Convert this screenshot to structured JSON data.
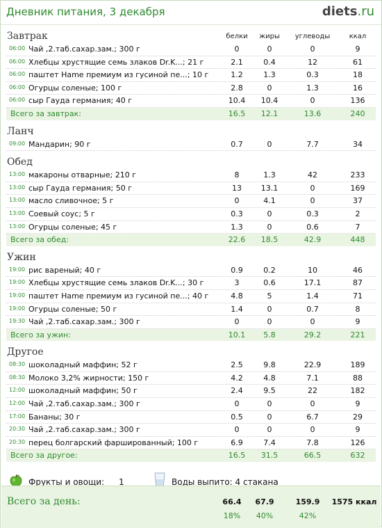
{
  "header": {
    "title": "Дневник питания, 3 декабря",
    "logo_main": "diets",
    "logo_tld": ".ru"
  },
  "columns": {
    "protein": "белки",
    "fat": "жиры",
    "carbs": "углеводы",
    "kcal": "ккал"
  },
  "meals": [
    {
      "name": "Завтрак",
      "items": [
        {
          "time": "06:00",
          "food": "Чай ,2.таб.сахар.зам.; 300 г",
          "p": "0",
          "f": "0",
          "c": "0",
          "k": "9"
        },
        {
          "time": "06:00",
          "food": "Хлебцы хрустящие семь злаков Dr.K...; 21 г",
          "p": "2.1",
          "f": "0.4",
          "c": "12",
          "k": "61"
        },
        {
          "time": "06:00",
          "food": "паштет Hame премиум из гусиной пе...; 10 г",
          "p": "1.2",
          "f": "1.3",
          "c": "0.3",
          "k": "18"
        },
        {
          "time": "06:00",
          "food": "Огурцы соленые; 100 г",
          "p": "2.8",
          "f": "0",
          "c": "1.3",
          "k": "16"
        },
        {
          "time": "06:00",
          "food": "сыр Гауда германия; 40 г",
          "p": "10.4",
          "f": "10.4",
          "c": "0",
          "k": "136"
        }
      ],
      "total": {
        "label": "Всего за завтрак:",
        "p": "16.5",
        "f": "12.1",
        "c": "13.6",
        "k": "240"
      }
    },
    {
      "name": "Ланч",
      "items": [
        {
          "time": "09:00",
          "food": "Мандарин; 90 г",
          "p": "0.7",
          "f": "0",
          "c": "7.7",
          "k": "34"
        }
      ],
      "total": null
    },
    {
      "name": "Обед",
      "items": [
        {
          "time": "13:00",
          "food": "макароны отварные; 210 г",
          "p": "8",
          "f": "1.3",
          "c": "42",
          "k": "233"
        },
        {
          "time": "13:00",
          "food": "сыр Гауда германия; 50 г",
          "p": "13",
          "f": "13.1",
          "c": "0",
          "k": "169"
        },
        {
          "time": "13:00",
          "food": "масло  сливочное; 5 г",
          "p": "0",
          "f": "4.1",
          "c": "0",
          "k": "37"
        },
        {
          "time": "13:00",
          "food": "Соевый соус; 5 г",
          "p": "0.3",
          "f": "0",
          "c": "0.3",
          "k": "2"
        },
        {
          "time": "13:00",
          "food": "Огурцы соленые; 45 г",
          "p": "1.3",
          "f": "0",
          "c": "0.6",
          "k": "7"
        }
      ],
      "total": {
        "label": "Всего за обед:",
        "p": "22.6",
        "f": "18.5",
        "c": "42.9",
        "k": "448"
      }
    },
    {
      "name": "Ужин",
      "items": [
        {
          "time": "19:00",
          "food": "рис вареный; 40 г",
          "p": "0.9",
          "f": "0.2",
          "c": "10",
          "k": "46"
        },
        {
          "time": "19:00",
          "food": "Хлебцы хрустящие семь злаков Dr.K...; 30 г",
          "p": "3",
          "f": "0.6",
          "c": "17.1",
          "k": "87"
        },
        {
          "time": "19:00",
          "food": "паштет Hame премиум из гусиной пе...; 40 г",
          "p": "4.8",
          "f": "5",
          "c": "1.4",
          "k": "71"
        },
        {
          "time": "19:00",
          "food": "Огурцы соленые; 50 г",
          "p": "1.4",
          "f": "0",
          "c": "0.7",
          "k": "8"
        },
        {
          "time": "19:30",
          "food": "Чай ,2.таб.сахар.зам.; 300 г",
          "p": "0",
          "f": "0",
          "c": "0",
          "k": "9"
        }
      ],
      "total": {
        "label": "Всего за ужин:",
        "p": "10.1",
        "f": "5.8",
        "c": "29.2",
        "k": "221"
      }
    },
    {
      "name": "Другое",
      "items": [
        {
          "time": "08:30",
          "food": "шоколадный маффин; 52 г",
          "p": "2.5",
          "f": "9.8",
          "c": "22.9",
          "k": "189"
        },
        {
          "time": "08:30",
          "food": "Молоко 3,2% жирности; 150 г",
          "p": "4.2",
          "f": "4.8",
          "c": "7.1",
          "k": "88"
        },
        {
          "time": "12:00",
          "food": "шоколадный маффин; 50 г",
          "p": "2.4",
          "f": "9.5",
          "c": "22",
          "k": "182"
        },
        {
          "time": "12:00",
          "food": "Чай ,2.таб.сахар.зам.; 300 г",
          "p": "0",
          "f": "0",
          "c": "0",
          "k": "9"
        },
        {
          "time": "17:00",
          "food": "Бананы; 30 г",
          "p": "0.5",
          "f": "0",
          "c": "6.7",
          "k": "29"
        },
        {
          "time": "20:30",
          "food": "Чай ,2.таб.сахар.зам.; 300 г",
          "p": "0",
          "f": "0",
          "c": "0",
          "k": "9"
        },
        {
          "time": "20:30",
          "food": "перец болгарский  фаршированный; 100 г",
          "p": "6.9",
          "f": "7.4",
          "c": "7.8",
          "k": "126"
        }
      ],
      "total": {
        "label": "Всего за другое:",
        "p": "16.5",
        "f": "31.5",
        "c": "66.5",
        "k": "632"
      }
    }
  ],
  "extras": {
    "fruits_label": "Фрукты и овощи:",
    "fruits_value": "1",
    "water_label": "Воды выпито: 4 стакана",
    "apple_icon": "apple-icon",
    "glass_icon": "water-glass-icon"
  },
  "day_total": {
    "label": "Всего за день:",
    "p": "66.4",
    "f": "67.9",
    "c": "159.9",
    "k": "1575 ккал",
    "p_pct": "18%",
    "f_pct": "40%",
    "c_pct": "42%"
  },
  "colors": {
    "accent": "#2f8a2f",
    "total_bg": "#eaf4e3"
  }
}
